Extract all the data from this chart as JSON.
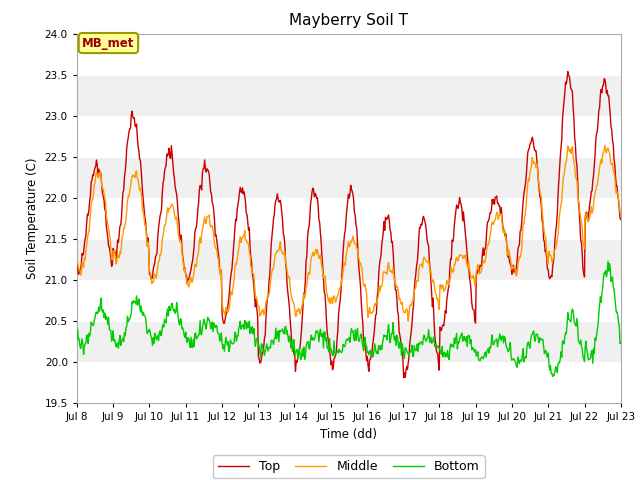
{
  "title": "Mayberry Soil T",
  "xlabel": "Time (dd)",
  "ylabel": "Soil Temperature (C)",
  "ylim": [
    19.5,
    24.0
  ],
  "yticks": [
    19.5,
    20.0,
    20.5,
    21.0,
    21.5,
    22.0,
    22.5,
    23.0,
    23.5,
    24.0
  ],
  "xtick_labels": [
    "Jul 8",
    "Jul 9",
    "Jul 10",
    "Jul 11",
    "Jul 12",
    "Jul 13",
    "Jul 14",
    "Jul 15",
    "Jul 16",
    "Jul 17",
    "Jul 18",
    "Jul 19",
    "Jul 20",
    "Jul 21",
    "Jul 22",
    "Jul 23"
  ],
  "legend_label": "MB_met",
  "line_colors": {
    "Top": "#cc0000",
    "Middle": "#ff9900",
    "Bottom": "#00cc00"
  },
  "plot_bg_color": "#f0f0f0",
  "grid_color": "#ffffff",
  "annotation_box_color": "#ffff99",
  "annotation_box_edge": "#999900",
  "annotation_text_color": "#990000",
  "figsize": [
    6.4,
    4.8
  ],
  "dpi": 100
}
